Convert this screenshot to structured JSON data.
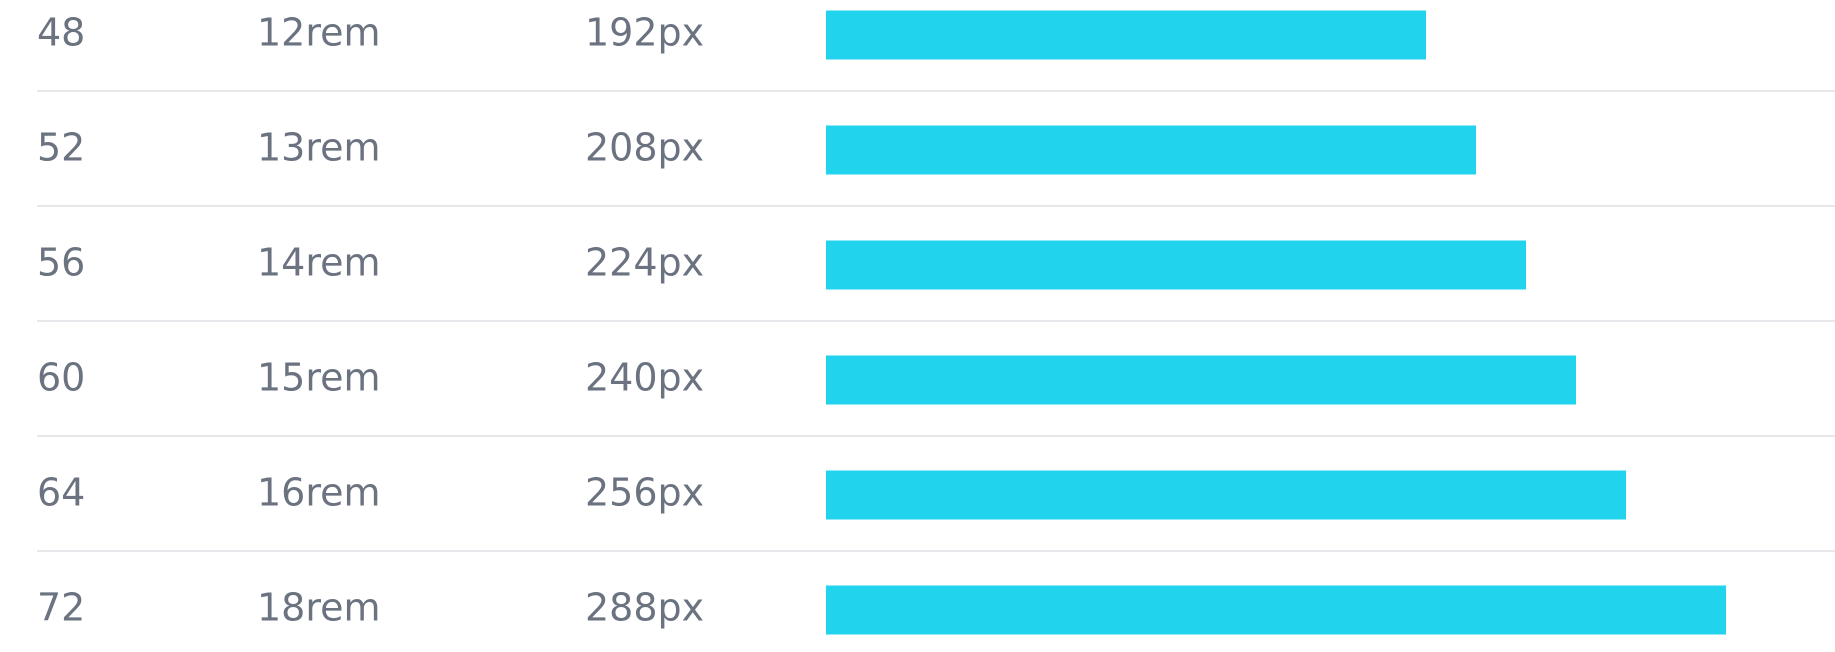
{
  "table": {
    "rows": [
      {
        "name": "48",
        "rem": "12rem",
        "px": {
          "value": 192,
          "label": "192px"
        }
      },
      {
        "name": "52",
        "rem": "13rem",
        "px": {
          "value": 208,
          "label": "208px"
        }
      },
      {
        "name": "56",
        "rem": "14rem",
        "px": {
          "value": 224,
          "label": "224px"
        }
      },
      {
        "name": "60",
        "rem": "15rem",
        "px": {
          "value": 240,
          "label": "240px"
        }
      },
      {
        "name": "64",
        "rem": "16rem",
        "px": {
          "value": 256,
          "label": "256px"
        }
      },
      {
        "name": "72",
        "rem": "18rem",
        "px": {
          "value": 288,
          "label": "288px"
        }
      }
    ],
    "bar_color": "#22d3ee"
  }
}
